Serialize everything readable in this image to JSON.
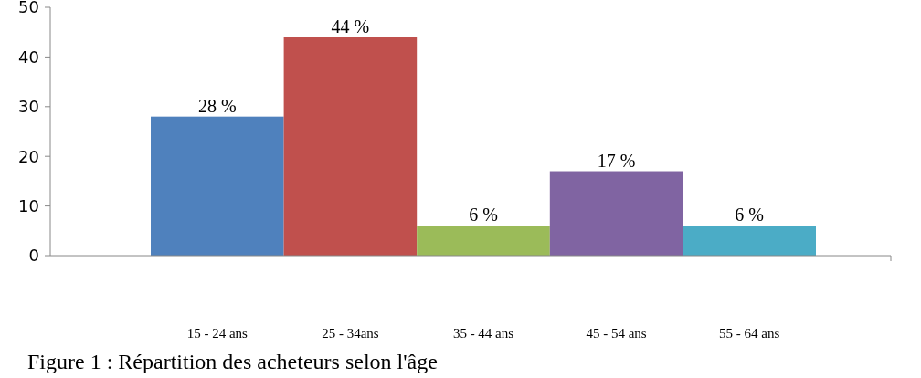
{
  "chart_data": {
    "type": "bar",
    "categories": [
      "15 - 24 ans",
      "25 - 34ans",
      "35 - 44 ans",
      "45 - 54 ans",
      "55 - 64 ans"
    ],
    "values": [
      28,
      44,
      6,
      17,
      6
    ],
    "colors": [
      "#4f81bd",
      "#c0504d",
      "#9bbb59",
      "#8064a2",
      "#4bacc6"
    ],
    "value_labels": [
      "28 %",
      "44 %",
      "6 %",
      "17 %",
      "6 %"
    ],
    "ylim": [
      0,
      50
    ],
    "yticks": [
      0,
      10,
      20,
      30,
      40,
      50
    ],
    "annotations": [
      "Figure 1 : Répartition des acheteurs selon l'âge"
    ]
  }
}
